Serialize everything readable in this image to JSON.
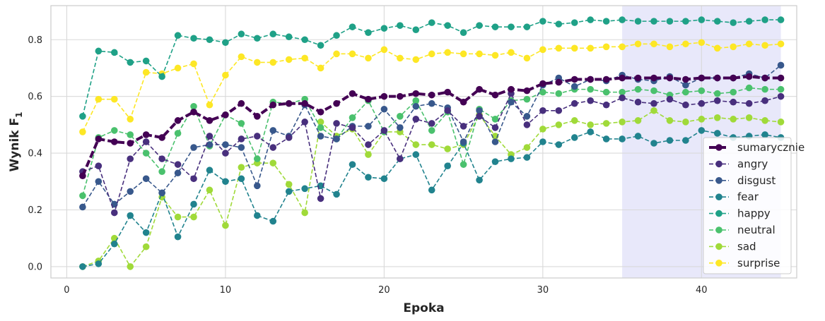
{
  "chart_data": {
    "type": "line",
    "xlabel": "Epoka",
    "ylabel": "Wynik F",
    "ylabel_sub": "1",
    "xlim": [
      -1,
      46
    ],
    "ylim": [
      -0.04,
      0.92
    ],
    "xticks": [
      0,
      10,
      20,
      30,
      40
    ],
    "yticks": [
      0.0,
      0.2,
      0.4,
      0.6,
      0.8
    ],
    "ytick_labels": [
      "0.0",
      "0.2",
      "0.4",
      "0.6",
      "0.8"
    ],
    "grid": true,
    "legend_position": "lower-right",
    "highlight_span": {
      "x_from": 35,
      "x_to": 45,
      "color": "#e8e8fa"
    },
    "x": [
      1,
      2,
      3,
      4,
      5,
      6,
      7,
      8,
      9,
      10,
      11,
      12,
      13,
      14,
      15,
      16,
      17,
      18,
      19,
      20,
      21,
      22,
      23,
      24,
      25,
      26,
      27,
      28,
      29,
      30,
      31,
      32,
      33,
      34,
      35,
      36,
      37,
      38,
      39,
      40,
      41,
      42,
      43,
      44,
      45
    ],
    "series": [
      {
        "name": "sumarycznie",
        "color": "#440154",
        "bold": true,
        "values": [
          0.32,
          0.45,
          0.44,
          0.435,
          0.465,
          0.455,
          0.515,
          0.545,
          0.515,
          0.535,
          0.575,
          0.53,
          0.57,
          0.575,
          0.575,
          0.545,
          0.575,
          0.61,
          0.59,
          0.6,
          0.6,
          0.61,
          0.605,
          0.615,
          0.58,
          0.625,
          0.605,
          0.625,
          0.62,
          0.645,
          0.65,
          0.66,
          0.66,
          0.66,
          0.665,
          0.665,
          0.665,
          0.665,
          0.66,
          0.665,
          0.665,
          0.665,
          0.67,
          0.665,
          0.665
        ]
      },
      {
        "name": "angry",
        "color": "#482f7d",
        "values": [
          0.335,
          0.355,
          0.19,
          0.38,
          0.44,
          0.38,
          0.36,
          0.31,
          0.46,
          0.4,
          0.45,
          0.46,
          0.42,
          0.455,
          0.51,
          0.24,
          0.505,
          0.49,
          0.43,
          0.48,
          0.38,
          0.52,
          0.505,
          0.55,
          0.495,
          0.53,
          0.49,
          0.61,
          0.5,
          0.55,
          0.55,
          0.575,
          0.585,
          0.57,
          0.595,
          0.58,
          0.575,
          0.59,
          0.57,
          0.575,
          0.585,
          0.58,
          0.575,
          0.585,
          0.6
        ]
      },
      {
        "name": "disgust",
        "color": "#38588c",
        "values": [
          0.21,
          0.3,
          0.22,
          0.265,
          0.31,
          0.26,
          0.33,
          0.42,
          0.43,
          0.43,
          0.42,
          0.285,
          0.48,
          0.46,
          0.57,
          0.46,
          0.45,
          0.495,
          0.495,
          0.555,
          0.49,
          0.565,
          0.575,
          0.56,
          0.44,
          0.55,
          0.44,
          0.58,
          0.53,
          0.64,
          0.665,
          0.635,
          0.66,
          0.655,
          0.675,
          0.66,
          0.655,
          0.67,
          0.64,
          0.665,
          0.665,
          0.665,
          0.68,
          0.665,
          0.71
        ]
      },
      {
        "name": "fear",
        "color": "#21838e",
        "values": [
          0.0,
          0.01,
          0.08,
          0.18,
          0.12,
          0.26,
          0.105,
          0.22,
          0.34,
          0.3,
          0.31,
          0.18,
          0.16,
          0.265,
          0.275,
          0.285,
          0.255,
          0.36,
          0.315,
          0.31,
          0.38,
          0.395,
          0.27,
          0.355,
          0.435,
          0.305,
          0.37,
          0.38,
          0.385,
          0.44,
          0.43,
          0.455,
          0.475,
          0.45,
          0.45,
          0.46,
          0.435,
          0.445,
          0.445,
          0.48,
          0.47,
          0.455,
          0.46,
          0.465,
          0.455
        ]
      },
      {
        "name": "happy",
        "color": "#1fa187",
        "values": [
          0.53,
          0.76,
          0.755,
          0.72,
          0.725,
          0.67,
          0.815,
          0.805,
          0.8,
          0.79,
          0.82,
          0.805,
          0.82,
          0.81,
          0.8,
          0.78,
          0.815,
          0.845,
          0.825,
          0.84,
          0.85,
          0.835,
          0.86,
          0.85,
          0.825,
          0.85,
          0.845,
          0.845,
          0.845,
          0.865,
          0.855,
          0.86,
          0.87,
          0.865,
          0.87,
          0.865,
          0.865,
          0.865,
          0.865,
          0.87,
          0.865,
          0.86,
          0.865,
          0.87,
          0.87
        ]
      },
      {
        "name": "neutral",
        "color": "#4ac16d",
        "values": [
          0.25,
          0.455,
          0.48,
          0.465,
          0.4,
          0.335,
          0.47,
          0.565,
          0.425,
          0.535,
          0.505,
          0.38,
          0.58,
          0.575,
          0.59,
          0.49,
          0.45,
          0.525,
          0.585,
          0.475,
          0.53,
          0.585,
          0.48,
          0.545,
          0.36,
          0.555,
          0.52,
          0.585,
          0.59,
          0.615,
          0.61,
          0.625,
          0.625,
          0.615,
          0.615,
          0.625,
          0.62,
          0.605,
          0.615,
          0.62,
          0.61,
          0.615,
          0.63,
          0.625,
          0.625
        ]
      },
      {
        "name": "sad",
        "color": "#a0da39",
        "values": [
          0.0,
          0.02,
          0.1,
          0.0,
          0.07,
          0.245,
          0.175,
          0.175,
          0.27,
          0.145,
          0.35,
          0.365,
          0.365,
          0.29,
          0.19,
          0.51,
          0.46,
          0.485,
          0.395,
          0.475,
          0.475,
          0.43,
          0.43,
          0.415,
          0.43,
          0.535,
          0.46,
          0.395,
          0.42,
          0.485,
          0.5,
          0.515,
          0.5,
          0.505,
          0.51,
          0.515,
          0.55,
          0.515,
          0.51,
          0.52,
          0.525,
          0.52,
          0.525,
          0.515,
          0.51
        ]
      },
      {
        "name": "surprise",
        "color": "#fde725",
        "values": [
          0.475,
          0.59,
          0.59,
          0.52,
          0.685,
          0.68,
          0.7,
          0.715,
          0.57,
          0.675,
          0.74,
          0.72,
          0.72,
          0.73,
          0.735,
          0.7,
          0.75,
          0.75,
          0.735,
          0.765,
          0.735,
          0.73,
          0.75,
          0.755,
          0.75,
          0.75,
          0.745,
          0.755,
          0.735,
          0.765,
          0.77,
          0.77,
          0.77,
          0.775,
          0.775,
          0.785,
          0.785,
          0.775,
          0.785,
          0.79,
          0.77,
          0.775,
          0.785,
          0.78,
          0.785
        ]
      }
    ]
  }
}
